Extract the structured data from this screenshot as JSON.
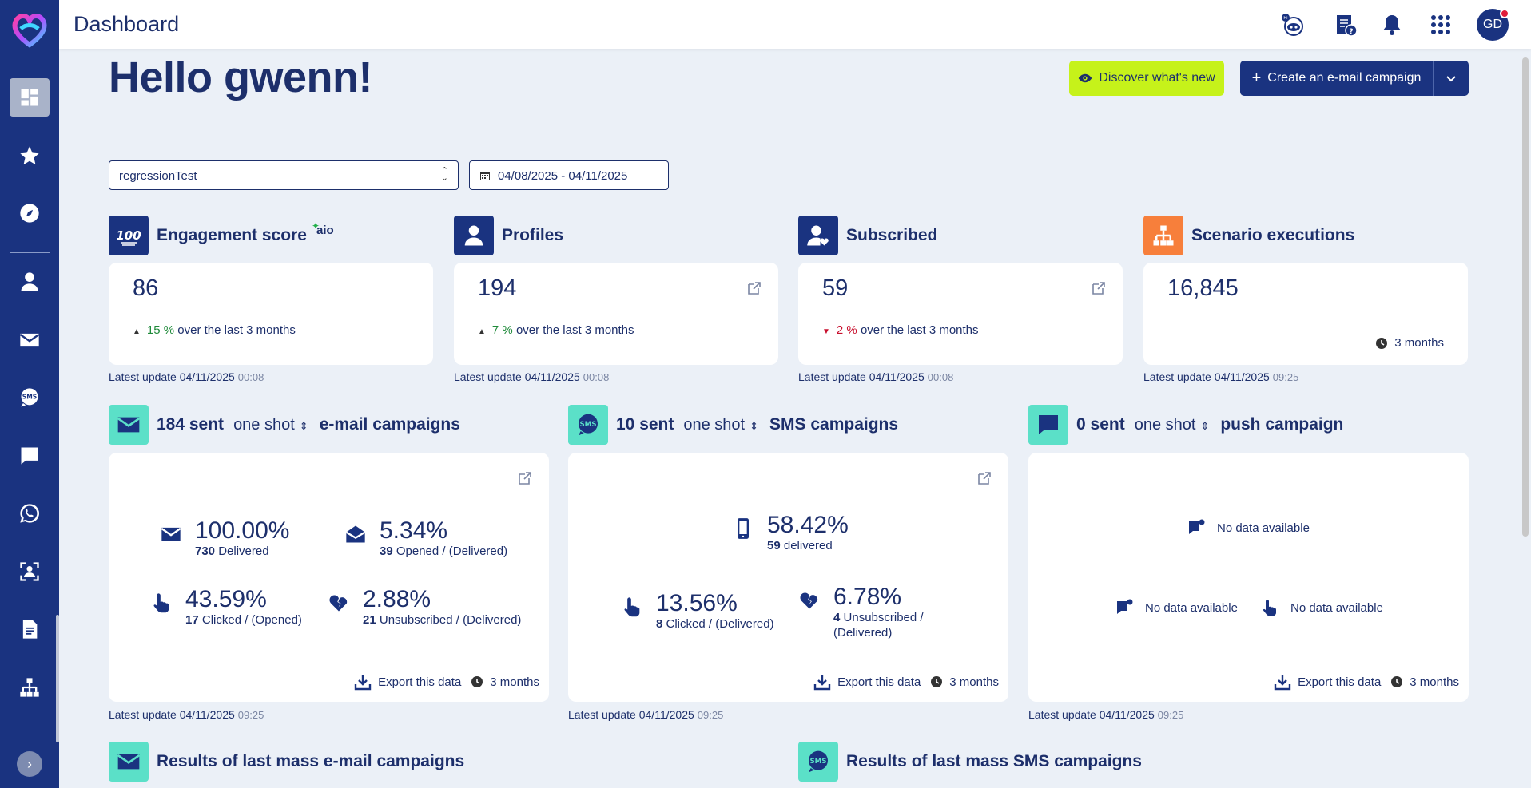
{
  "header": {
    "title": "Dashboard",
    "avatar_initials": "GD"
  },
  "greeting": "Hello gwenn!",
  "actions": {
    "discover_label": "Discover what's new",
    "create_label": "Create an e-mail campaign"
  },
  "filters": {
    "database": "regressionTest",
    "date_range": "04/08/2025 - 04/11/2025"
  },
  "kpis": [
    {
      "label": "Engagement score",
      "badge": "aio",
      "value": "86",
      "trend_pct": "15 %",
      "trend_text": "over the last 3 months",
      "updated_label": "Latest update 04/11/2025",
      "updated_time": "00:08"
    },
    {
      "label": "Profiles",
      "value": "194",
      "trend_pct": "7 %",
      "trend_text": "over the last 3 months",
      "updated_label": "Latest update 04/11/2025",
      "updated_time": "00:08"
    },
    {
      "label": "Subscribed",
      "value": "59",
      "trend_pct": "2 %",
      "trend_text": "over the last 3 months",
      "updated_label": "Latest update 04/11/2025",
      "updated_time": "00:08"
    },
    {
      "label": "Scenario executions",
      "value": "16,845",
      "period": "3 months",
      "updated_label": "Latest update 04/11/2025",
      "updated_time": "09:25"
    }
  ],
  "campaigns": {
    "email": {
      "count": "184 sent",
      "mode": "one shot",
      "kind": "e-mail campaigns",
      "delivered_pct": "100.00%",
      "delivered_n": "730",
      "delivered_lbl": "Delivered",
      "opened_pct": "5.34%",
      "opened_n": "39",
      "opened_lbl": "Opened / (Delivered)",
      "clicked_pct": "43.59%",
      "clicked_n": "17",
      "clicked_lbl": "Clicked / (Opened)",
      "unsub_pct": "2.88%",
      "unsub_n": "21",
      "unsub_lbl": "Unsubscribed / (Delivered)",
      "export": "Export this data",
      "period": "3 months",
      "updated_label": "Latest update 04/11/2025",
      "updated_time": "09:25"
    },
    "sms": {
      "count": "10 sent",
      "mode": "one shot",
      "kind": "SMS campaigns",
      "delivered_pct": "58.42%",
      "delivered_n": "59",
      "delivered_lbl": "delivered",
      "clicked_pct": "13.56%",
      "clicked_n": "8",
      "clicked_lbl": "Clicked / (Delivered)",
      "unsub_pct": "6.78%",
      "unsub_n": "4",
      "unsub_lbl": "Unsubscribed /",
      "unsub_lbl2": "(Delivered)",
      "export": "Export this data",
      "period": "3 months",
      "updated_label": "Latest update 04/11/2025",
      "updated_time": "09:25"
    },
    "push": {
      "count": "0 sent",
      "mode": "one shot",
      "kind": "push campaign",
      "nodata": "No data available",
      "export": "Export this data",
      "period": "3 months",
      "updated_label": "Latest update 04/11/2025",
      "updated_time": "09:25"
    }
  },
  "results": {
    "email_title": "Results of last mass e-mail campaigns",
    "sms_title": "Results of last mass SMS campaigns"
  },
  "colors": {
    "brand_navy": "#1a3380",
    "accent_lime": "#c6f21a",
    "accent_teal": "#5be0c8",
    "scenario_orange": "#f77f3b",
    "trend_up": "#1f8a3a",
    "trend_down": "#c8102e"
  }
}
